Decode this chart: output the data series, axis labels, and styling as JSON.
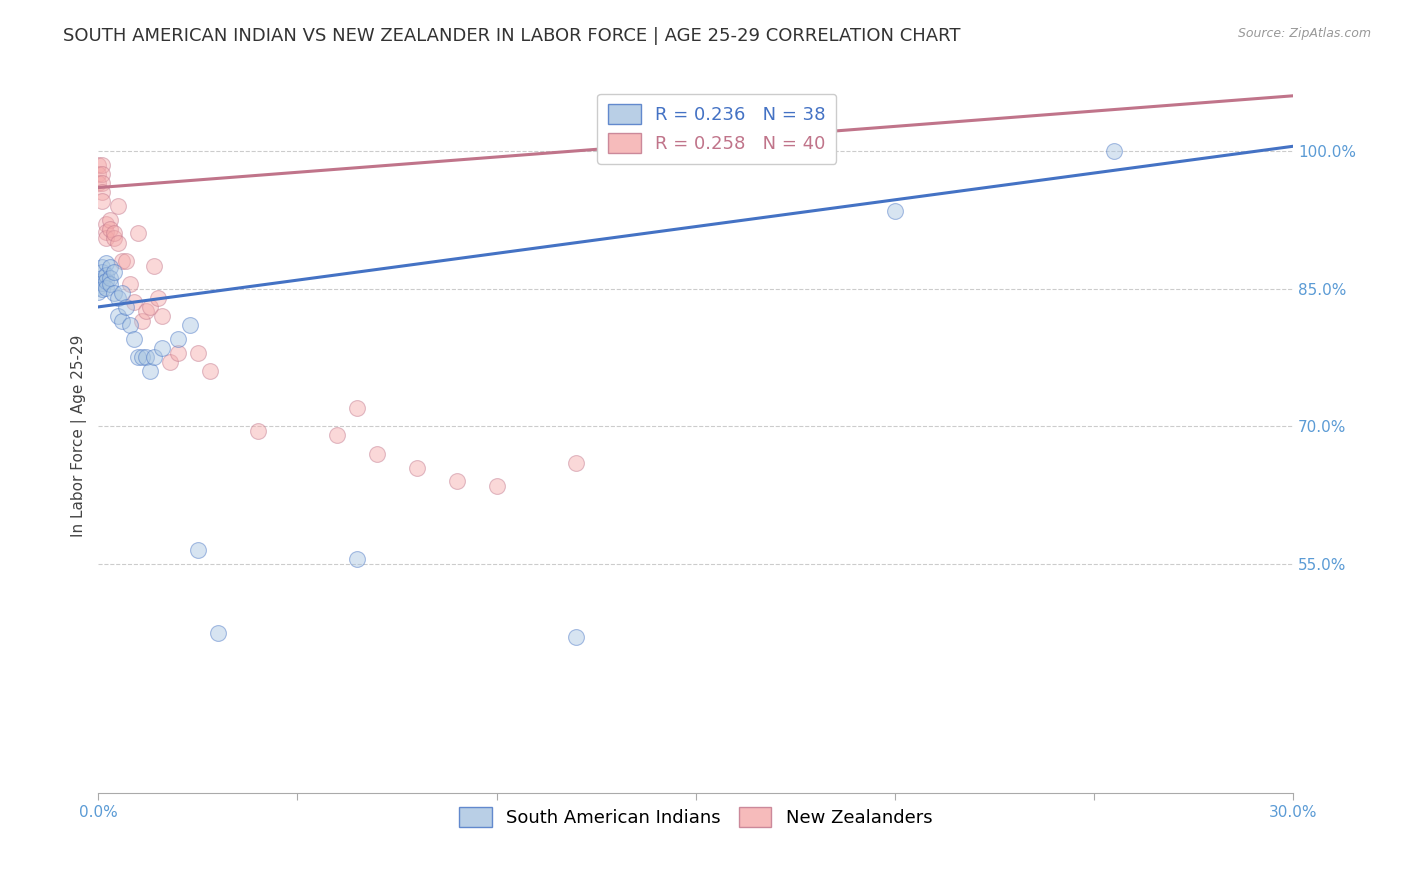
{
  "title": "SOUTH AMERICAN INDIAN VS NEW ZEALANDER IN LABOR FORCE | AGE 25-29 CORRELATION CHART",
  "source": "Source: ZipAtlas.com",
  "ylabel": "In Labor Force | Age 25-29",
  "xlim": [
    0.0,
    0.3
  ],
  "ylim": [
    0.3,
    1.08
  ],
  "yticks": [
    0.55,
    0.7,
    0.85,
    1.0
  ],
  "ytick_labels": [
    "55.0%",
    "70.0%",
    "85.0%",
    "100.0%"
  ],
  "xticks": [
    0.0,
    0.05,
    0.1,
    0.15,
    0.2,
    0.25,
    0.3
  ],
  "xtick_labels": [
    "0.0%",
    "",
    "",
    "",
    "",
    "",
    "30.0%"
  ],
  "blue_R": 0.236,
  "blue_N": 38,
  "pink_R": 0.258,
  "pink_N": 40,
  "blue_color": "#A8C4E0",
  "pink_color": "#F4AAAA",
  "blue_line_color": "#4472C4",
  "pink_line_color": "#C0748A",
  "title_color": "#333333",
  "axis_color": "#5B9BD5",
  "grid_color": "#CCCCCC",
  "background_color": "#FFFFFF",
  "blue_scatter_x": [
    0.0,
    0.0,
    0.0,
    0.001,
    0.001,
    0.001,
    0.001,
    0.001,
    0.002,
    0.002,
    0.002,
    0.002,
    0.003,
    0.003,
    0.003,
    0.004,
    0.004,
    0.005,
    0.005,
    0.006,
    0.006,
    0.007,
    0.008,
    0.009,
    0.01,
    0.011,
    0.012,
    0.013,
    0.014,
    0.016,
    0.02,
    0.023,
    0.025,
    0.03,
    0.065,
    0.12,
    0.2,
    0.255
  ],
  "blue_scatter_y": [
    0.858,
    0.852,
    0.846,
    0.874,
    0.868,
    0.862,
    0.856,
    0.85,
    0.878,
    0.865,
    0.858,
    0.851,
    0.874,
    0.862,
    0.855,
    0.868,
    0.845,
    0.84,
    0.82,
    0.845,
    0.815,
    0.83,
    0.81,
    0.795,
    0.775,
    0.775,
    0.775,
    0.76,
    0.775,
    0.785,
    0.795,
    0.81,
    0.565,
    0.475,
    0.555,
    0.47,
    0.935,
    1.0
  ],
  "pink_scatter_x": [
    0.0,
    0.0,
    0.0,
    0.001,
    0.001,
    0.001,
    0.001,
    0.001,
    0.002,
    0.002,
    0.002,
    0.003,
    0.003,
    0.004,
    0.004,
    0.005,
    0.005,
    0.006,
    0.007,
    0.008,
    0.009,
    0.01,
    0.011,
    0.012,
    0.013,
    0.014,
    0.015,
    0.016,
    0.018,
    0.02,
    0.025,
    0.028,
    0.04,
    0.06,
    0.065,
    0.07,
    0.08,
    0.09,
    0.1,
    0.12
  ],
  "pink_scatter_y": [
    0.985,
    0.975,
    0.965,
    0.985,
    0.975,
    0.965,
    0.955,
    0.945,
    0.92,
    0.912,
    0.905,
    0.925,
    0.915,
    0.905,
    0.91,
    0.94,
    0.9,
    0.88,
    0.88,
    0.855,
    0.835,
    0.91,
    0.815,
    0.825,
    0.83,
    0.875,
    0.84,
    0.82,
    0.77,
    0.78,
    0.78,
    0.76,
    0.695,
    0.69,
    0.72,
    0.67,
    0.655,
    0.64,
    0.635,
    0.66
  ],
  "blue_trend_x": [
    0.0,
    0.3
  ],
  "blue_trend_y": [
    0.83,
    1.005
  ],
  "pink_trend_x": [
    0.0,
    0.3
  ],
  "pink_trend_y": [
    0.96,
    1.06
  ],
  "marker_size": 130,
  "marker_alpha": 0.45,
  "line_width": 2.2,
  "title_fontsize": 13,
  "label_fontsize": 11,
  "tick_fontsize": 11,
  "legend_fontsize": 13
}
